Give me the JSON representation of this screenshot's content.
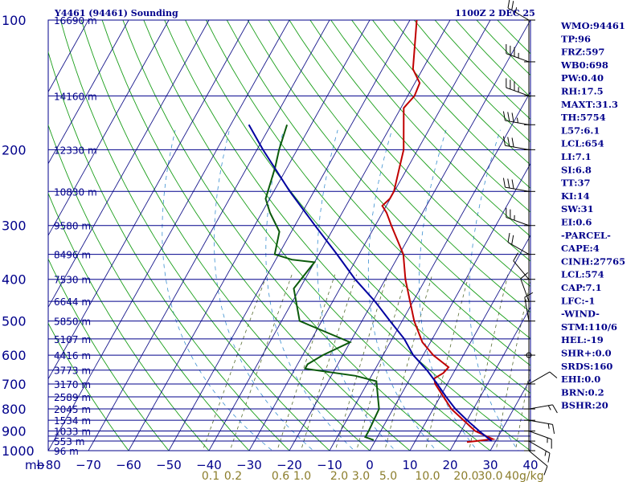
{
  "header": {
    "station": "Y4461 (94461) Sounding",
    "time": "1100Z  2 DEC 25"
  },
  "indices": [
    "WMO:94461",
    "TP:96",
    "FRZ:597",
    "WB0:698",
    "PW:0.40",
    "RH:17.5",
    "MAXT:31.3",
    "TH:5754",
    "L57:6.1",
    "LCL:654",
    "LI:7.1",
    "SI:6.8",
    "TT:37",
    "KI:14",
    "SW:31",
    "EI:0.6",
    "-PARCEL-",
    "CAPE:4",
    "CINH:27765",
    "LCL:574",
    "CAP:7.1",
    "LFC:-1",
    "-WIND-",
    "STM:110/6",
    "HEL:-19",
    "SHR+:0.0",
    "SRDS:160",
    "EHI:0.0",
    "BRN:0.2",
    "BSHR:20"
  ],
  "chart_data": {
    "type": "line",
    "title": "Y4461 (94461) Sounding",
    "y_axis": {
      "unit_label": "mb",
      "scale": "log",
      "pressure_ticks": [
        100,
        200,
        300,
        400,
        500,
        600,
        700,
        800,
        900,
        1000
      ],
      "isobar_levels": [
        100,
        150,
        200,
        250,
        300,
        350,
        400,
        450,
        500,
        550,
        600,
        650,
        700,
        750,
        800,
        850,
        900,
        925,
        950,
        1000
      ]
    },
    "x_axis": {
      "temperature_ticks": [
        -80,
        -70,
        -60,
        -50,
        -40,
        -30,
        -20,
        -10,
        0,
        10,
        20,
        30,
        40
      ],
      "xlim": [
        -80,
        40
      ]
    },
    "mixing_ratio_axis": {
      "unit_label": "g/kg",
      "ticks": [
        "0.1",
        "0.2",
        "0.6",
        "1.0",
        "2.0",
        "3.0",
        "5.0",
        "10.0",
        "20.0",
        "30.0",
        "40"
      ]
    },
    "height_labels": [
      {
        "p": 100,
        "label": "16690 m"
      },
      {
        "p": 150,
        "label": "14160 m"
      },
      {
        "p": 200,
        "label": "12330 m"
      },
      {
        "p": 250,
        "label": "10830 m"
      },
      {
        "p": 300,
        "label": "9580 m"
      },
      {
        "p": 350,
        "label": "8496 m"
      },
      {
        "p": 400,
        "label": "7530 m"
      },
      {
        "p": 450,
        "label": "6644 m"
      },
      {
        "p": 500,
        "label": "5850 m"
      },
      {
        "p": 550,
        "label": "5107 m"
      },
      {
        "p": 600,
        "label": "4416 m"
      },
      {
        "p": 650,
        "label": "3773 m"
      },
      {
        "p": 700,
        "label": "3170 m"
      },
      {
        "p": 750,
        "label": "2589 m"
      },
      {
        "p": 800,
        "label": "2045 m"
      },
      {
        "p": 850,
        "label": "1534 m"
      },
      {
        "p": 900,
        "label": "1033 m"
      },
      {
        "p": 950,
        "label": "553 m"
      },
      {
        "p": 1000,
        "label": "96 m"
      }
    ],
    "series": [
      {
        "role": "temperature",
        "color": "#c00000",
        "points": [
          [
            100,
            -48.3
          ],
          [
            130,
            -42.4
          ],
          [
            140,
            -38.8
          ],
          [
            150,
            -38.3
          ],
          [
            160,
            -39.3
          ],
          [
            200,
            -33.5
          ],
          [
            250,
            -30.1
          ],
          [
            260,
            -30.1
          ],
          [
            270,
            -31.0
          ],
          [
            280,
            -29.0
          ],
          [
            300,
            -26.0
          ],
          [
            350,
            -19.0
          ],
          [
            400,
            -15.0
          ],
          [
            500,
            -7.0
          ],
          [
            560,
            -2.0
          ],
          [
            600,
            2.5
          ],
          [
            640,
            8.0
          ],
          [
            660,
            7.5
          ],
          [
            680,
            6.0
          ],
          [
            700,
            7.0
          ],
          [
            800,
            14.5
          ],
          [
            900,
            23.5
          ],
          [
            940,
            29.0
          ],
          [
            950,
            25.0
          ],
          [
            955,
            23.0
          ]
        ]
      },
      {
        "role": "dewpoint",
        "color": "#0b5a0b",
        "points": [
          [
            175,
            -66.0
          ],
          [
            200,
            -64.5
          ],
          [
            220,
            -63.0
          ],
          [
            260,
            -61.0
          ],
          [
            280,
            -58.0
          ],
          [
            310,
            -53.0
          ],
          [
            350,
            -51.0
          ],
          [
            360,
            -46.0
          ],
          [
            365,
            -40.0
          ],
          [
            400,
            -41.0
          ],
          [
            420,
            -41.5
          ],
          [
            500,
            -35.5
          ],
          [
            560,
            -20.0
          ],
          [
            600,
            -25.0
          ],
          [
            630,
            -27.5
          ],
          [
            645,
            -27.5
          ],
          [
            670,
            -14.0
          ],
          [
            690,
            -8.0
          ],
          [
            800,
            -3.5
          ],
          [
            900,
            -3.0
          ],
          [
            930,
            -3.0
          ],
          [
            945,
            -0.5
          ]
        ]
      },
      {
        "role": "parcel",
        "color": "#0000a0",
        "points": [
          [
            950,
            29.0
          ],
          [
            900,
            24.5
          ],
          [
            850,
            20.0
          ],
          [
            800,
            15.5
          ],
          [
            750,
            11.5
          ],
          [
            700,
            7.5
          ],
          [
            650,
            3.0
          ],
          [
            600,
            -2.5
          ],
          [
            550,
            -7.0
          ],
          [
            500,
            -13.0
          ],
          [
            450,
            -19.5
          ],
          [
            400,
            -27.5
          ],
          [
            350,
            -35.5
          ],
          [
            300,
            -45.0
          ],
          [
            250,
            -56.0
          ],
          [
            200,
            -68.5
          ],
          [
            175,
            -75.5
          ]
        ]
      }
    ],
    "wind_barbs": [
      {
        "p": 100,
        "dir": 300,
        "spd": 25
      },
      {
        "p": 125,
        "dir": 290,
        "spd": 35
      },
      {
        "p": 150,
        "dir": 290,
        "spd": 35
      },
      {
        "p": 175,
        "dir": 280,
        "spd": 35
      },
      {
        "p": 200,
        "dir": 280,
        "spd": 30
      },
      {
        "p": 250,
        "dir": 280,
        "spd": 30
      },
      {
        "p": 300,
        "dir": 290,
        "spd": 25
      },
      {
        "p": 350,
        "dir": 300,
        "spd": 20
      },
      {
        "p": 400,
        "dir": 320,
        "spd": 10
      },
      {
        "p": 450,
        "dir": 340,
        "spd": 10
      },
      {
        "p": 500,
        "dir": 350,
        "spd": 10
      },
      {
        "p": 600,
        "dir": 0,
        "spd": 0
      },
      {
        "p": 700,
        "dir": 60,
        "spd": 10
      },
      {
        "p": 800,
        "dir": 80,
        "spd": 15
      },
      {
        "p": 850,
        "dir": 100,
        "spd": 15
      },
      {
        "p": 900,
        "dir": 110,
        "spd": 15
      },
      {
        "p": 950,
        "dir": 120,
        "spd": 15
      },
      {
        "p": 1000,
        "dir": 130,
        "spd": 10
      }
    ]
  }
}
